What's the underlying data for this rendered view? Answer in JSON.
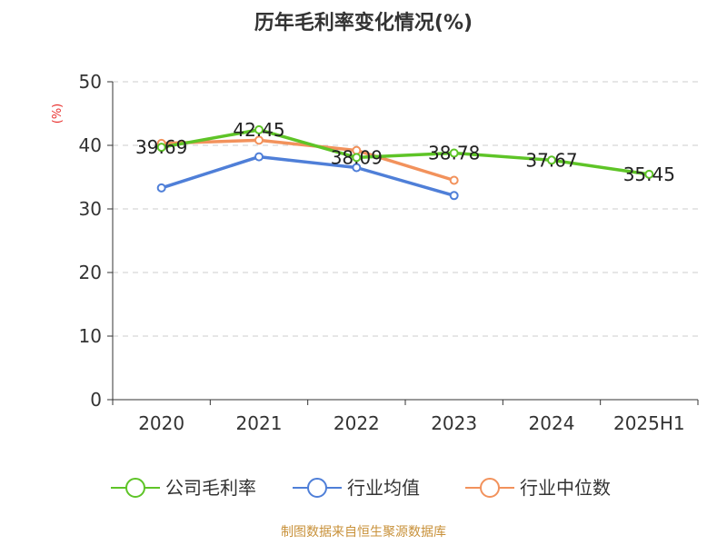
{
  "chart_data": {
    "type": "line",
    "title": "历年毛利率变化情况(%)",
    "ylabel": "(%)",
    "xlabel": "",
    "categories": [
      "2020",
      "2021",
      "2022",
      "2023",
      "2024",
      "2025H1"
    ],
    "ylim": [
      0,
      50
    ],
    "yticks": [
      0,
      10,
      20,
      30,
      40,
      50
    ],
    "grid": true,
    "legend_position": "bottom",
    "series": [
      {
        "name": "公司毛利率",
        "color": "#5ec427",
        "values": [
          39.69,
          42.45,
          38.09,
          38.78,
          37.67,
          35.45
        ],
        "labels": [
          "39.69",
          "42.45",
          "38.09",
          "38.78",
          "37.67",
          "35.45"
        ]
      },
      {
        "name": "行业均值",
        "color": "#4f7fd8",
        "values": [
          33.3,
          38.2,
          36.5,
          32.1,
          null,
          null
        ]
      },
      {
        "name": "行业中位数",
        "color": "#f2925c",
        "values": [
          40.3,
          40.8,
          39.2,
          34.5,
          null,
          null
        ]
      }
    ],
    "source": "制图数据来自恒生聚源数据库"
  }
}
